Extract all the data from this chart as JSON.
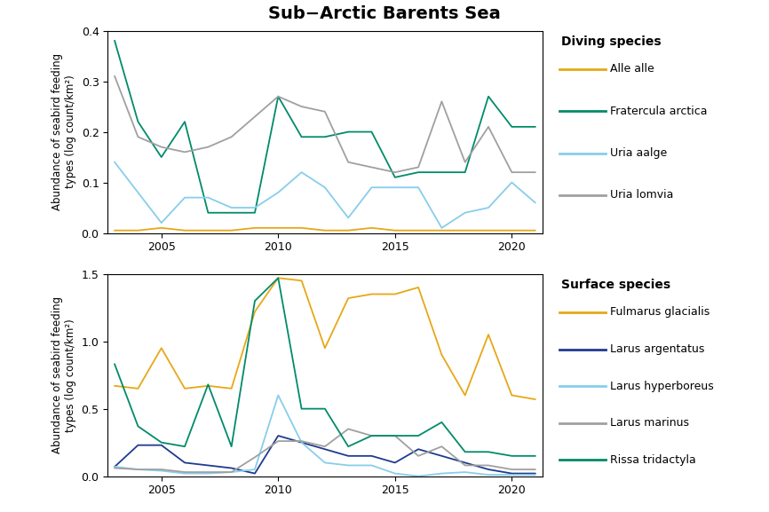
{
  "title": "Sub−Arctic Barents Sea",
  "title_color": "black",
  "title_bg": "#FF00FF",
  "years": [
    2003,
    2004,
    2005,
    2006,
    2007,
    2008,
    2009,
    2010,
    2011,
    2012,
    2013,
    2014,
    2015,
    2016,
    2017,
    2018,
    2019,
    2020,
    2021
  ],
  "diving": {
    "Alle alle": {
      "color": "#E6A817",
      "values": [
        0.005,
        0.005,
        0.01,
        0.005,
        0.005,
        0.005,
        0.01,
        0.01,
        0.01,
        0.005,
        0.005,
        0.01,
        0.005,
        0.005,
        0.005,
        0.005,
        0.005,
        0.005,
        0.005
      ]
    },
    "Fratercula arctica": {
      "color": "#008B6A",
      "values": [
        0.38,
        0.22,
        0.15,
        0.22,
        0.04,
        0.04,
        0.04,
        0.27,
        0.19,
        0.19,
        0.2,
        0.2,
        0.11,
        0.12,
        0.12,
        0.12,
        0.27,
        0.21,
        0.21
      ]
    },
    "Uria aalge": {
      "color": "#87CEEB",
      "values": [
        0.14,
        0.08,
        0.02,
        0.07,
        0.07,
        0.05,
        0.05,
        0.08,
        0.12,
        0.09,
        0.03,
        0.09,
        0.09,
        0.09,
        0.01,
        0.04,
        0.05,
        0.1,
        0.06
      ]
    },
    "Uria lomvia": {
      "color": "#A0A0A0",
      "values": [
        0.31,
        0.19,
        0.17,
        0.16,
        0.17,
        0.19,
        0.23,
        0.27,
        0.25,
        0.24,
        0.14,
        0.13,
        0.12,
        0.13,
        0.26,
        0.14,
        0.21,
        0.12,
        0.12
      ]
    }
  },
  "surface": {
    "Fulmarus glacialis": {
      "color": "#E6A817",
      "values": [
        0.67,
        0.65,
        0.95,
        0.65,
        0.67,
        0.65,
        1.22,
        1.47,
        1.45,
        0.95,
        1.32,
        1.35,
        1.35,
        1.4,
        0.9,
        0.6,
        1.05,
        0.6,
        0.57
      ]
    },
    "Larus argentatus": {
      "color": "#1F3A8F",
      "values": [
        0.07,
        0.23,
        0.23,
        0.1,
        0.08,
        0.06,
        0.02,
        0.3,
        0.25,
        0.2,
        0.15,
        0.15,
        0.1,
        0.2,
        0.15,
        0.1,
        0.05,
        0.02,
        0.02
      ]
    },
    "Larus hyperboreus": {
      "color": "#87CEEB",
      "values": [
        0.07,
        0.05,
        0.04,
        0.02,
        0.02,
        0.03,
        0.05,
        0.6,
        0.25,
        0.1,
        0.08,
        0.08,
        0.02,
        0.0,
        0.02,
        0.03,
        0.01,
        0.01,
        0.01
      ]
    },
    "Larus marinus": {
      "color": "#A0A0A0",
      "values": [
        0.06,
        0.05,
        0.05,
        0.03,
        0.03,
        0.03,
        0.14,
        0.26,
        0.26,
        0.22,
        0.35,
        0.3,
        0.3,
        0.15,
        0.22,
        0.08,
        0.08,
        0.05,
        0.05
      ]
    },
    "Rissa tridactyla": {
      "color": "#008B6A",
      "values": [
        0.83,
        0.37,
        0.25,
        0.22,
        0.68,
        0.22,
        1.3,
        1.47,
        0.5,
        0.5,
        0.22,
        0.3,
        0.3,
        0.3,
        0.4,
        0.18,
        0.18,
        0.15,
        0.15
      ]
    }
  },
  "upper_ylim": [
    0,
    0.4
  ],
  "lower_ylim": [
    0,
    1.5
  ],
  "upper_yticks": [
    0.0,
    0.1,
    0.2,
    0.3,
    0.4
  ],
  "lower_yticks": [
    0.0,
    0.5,
    1.0,
    1.5
  ],
  "ylabel": "Abundance of seabird feeding\ntypes (log count/km²)",
  "xlabel_ticks": [
    2005,
    2010,
    2015,
    2020
  ]
}
